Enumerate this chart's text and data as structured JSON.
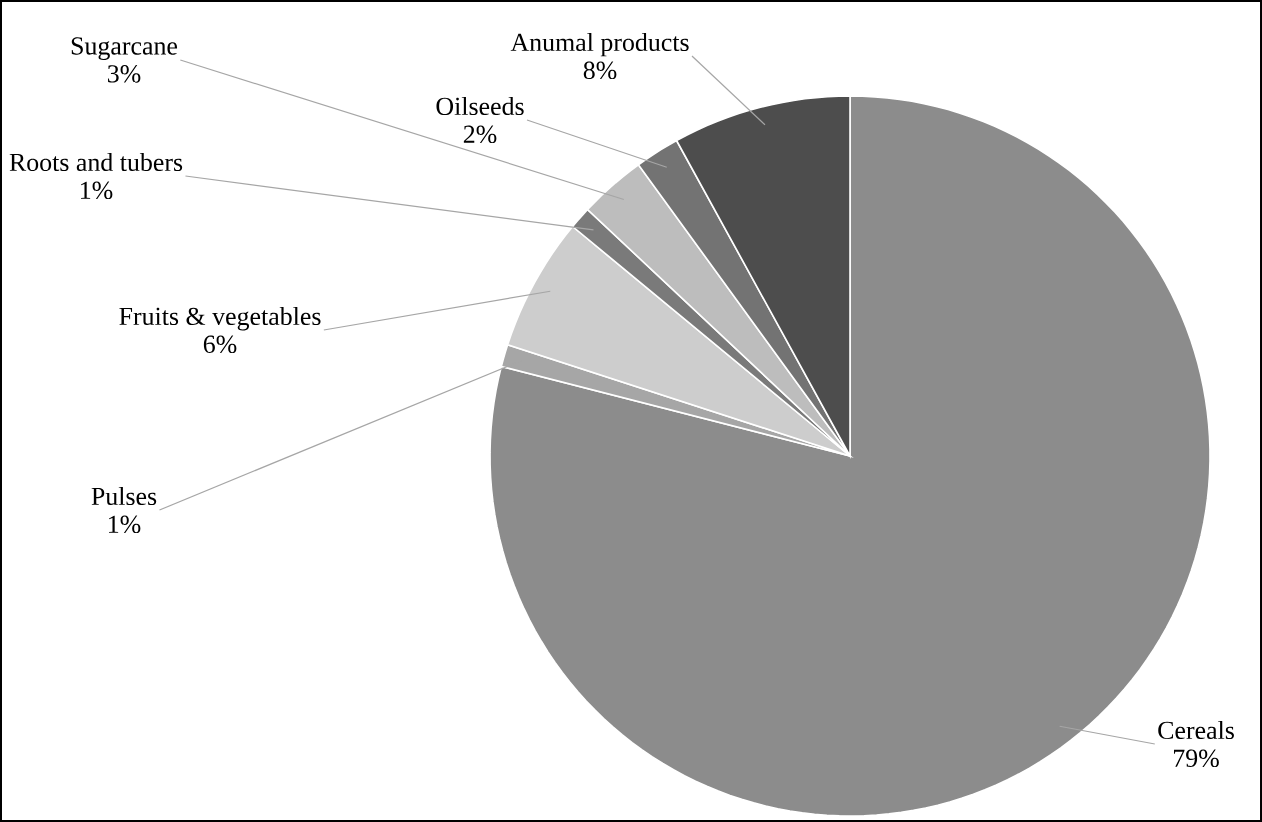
{
  "chart_data": {
    "type": "pie",
    "categories": [
      "Cereals",
      "Pulses",
      "Fruits & vegetables",
      "Roots and tubers",
      "Sugarcane",
      "Oilseeds",
      "Anumal products"
    ],
    "values": [
      79,
      1,
      6,
      1,
      3,
      2,
      8
    ],
    "value_labels": [
      "79%",
      "1%",
      "6%",
      "1%",
      "3%",
      "2%",
      "8%"
    ],
    "colors": [
      "#8c8c8c",
      "#a6a6a6",
      "#cdcdcd",
      "#7a7a7a",
      "#bdbdbd",
      "#737373",
      "#4d4d4d"
    ]
  }
}
